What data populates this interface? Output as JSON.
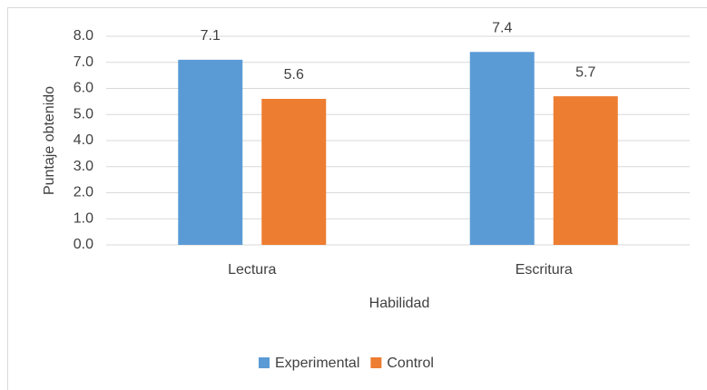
{
  "chart_data": {
    "type": "bar",
    "categories": [
      "Lectura",
      "Escritura"
    ],
    "series": [
      {
        "name": "Experimental",
        "color": "#5b9bd5",
        "values": [
          7.1,
          7.4
        ]
      },
      {
        "name": "Control",
        "color": "#ed7d31",
        "values": [
          5.6,
          5.7
        ]
      }
    ],
    "xlabel": "Habilidad",
    "ylabel": "Puntaje obtenido",
    "ylim": [
      0,
      8
    ],
    "yticks": [
      {
        "value": 0,
        "label": "0.0"
      },
      {
        "value": 1,
        "label": "1.0"
      },
      {
        "value": 2,
        "label": "2.0"
      },
      {
        "value": 3,
        "label": "3.0"
      },
      {
        "value": 4,
        "label": "4.0"
      },
      {
        "value": 5,
        "label": "5.0"
      },
      {
        "value": 6,
        "label": "6.0"
      },
      {
        "value": 7,
        "label": "7.0"
      },
      {
        "value": 8,
        "label": "8.0"
      }
    ],
    "grid": true,
    "legend": "bottom"
  }
}
